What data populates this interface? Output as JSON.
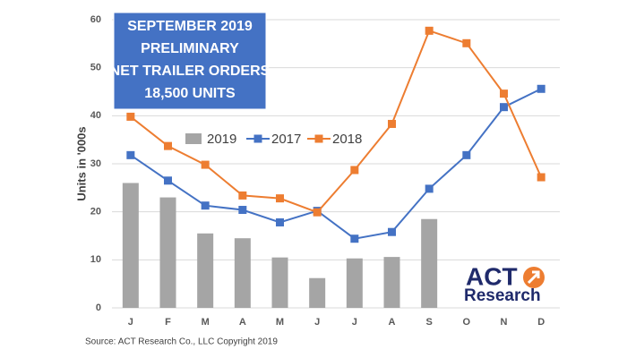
{
  "chart_data": {
    "type": "bar",
    "title_lines": [
      "SEPTEMBER 2019",
      "PRELIMINARY",
      "NET TRAILER ORDERS",
      "18,500 UNITS"
    ],
    "title_box_color": "#4472c4",
    "ylabel": "Units in '000s",
    "source": "Source: ACT Research Co., LLC  Copyright 2019",
    "logo": [
      "ACT",
      "Research"
    ],
    "categories": [
      "J",
      "F",
      "M",
      "A",
      "M",
      "J",
      "J",
      "A",
      "S",
      "O",
      "N",
      "D"
    ],
    "series": [
      {
        "name": "2019",
        "type": "bar",
        "color": "#a5a5a5",
        "values": [
          26,
          23,
          15.5,
          14.5,
          10.5,
          6.2,
          10.3,
          10.6,
          18.5,
          null,
          null,
          null
        ]
      },
      {
        "name": "2017",
        "type": "line",
        "color": "#4472c4",
        "values": [
          31.8,
          26.5,
          21.3,
          20.4,
          17.8,
          20.2,
          14.4,
          15.8,
          24.8,
          31.8,
          41.8,
          45.6
        ]
      },
      {
        "name": "2018",
        "type": "line",
        "color": "#ed7d31",
        "values": [
          39.8,
          33.7,
          29.8,
          23.4,
          22.8,
          19.9,
          28.7,
          38.3,
          57.7,
          55.1,
          44.6,
          27.2
        ]
      }
    ],
    "ylim": [
      0,
      60
    ],
    "yticks": [
      0,
      10,
      20,
      30,
      40,
      50,
      60
    ],
    "grid": true
  }
}
